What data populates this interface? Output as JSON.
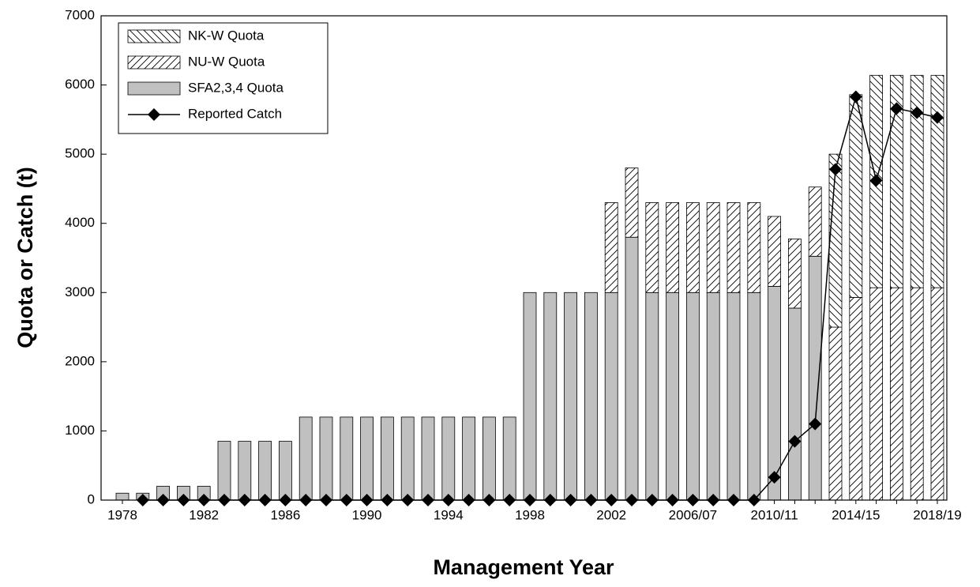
{
  "chart_data": {
    "type": "bar",
    "x_label": "Management Year",
    "y_label": "Quota or Catch (t)",
    "categories": [
      "1978",
      null,
      null,
      null,
      "1982",
      null,
      null,
      null,
      "1986",
      null,
      null,
      null,
      "1990",
      null,
      null,
      null,
      "1994",
      null,
      null,
      null,
      "1998",
      null,
      null,
      null,
      "2002",
      null,
      null,
      null,
      "2006/07",
      null,
      null,
      null,
      "2010/11",
      null,
      null,
      null,
      "2014/15",
      null,
      null,
      null,
      "2018/19"
    ],
    "series": [
      {
        "name": "NK-W Quota",
        "type": "bar",
        "pattern": "backslash",
        "color": "#000000",
        "values": [
          0,
          0,
          0,
          0,
          0,
          0,
          0,
          0,
          0,
          0,
          0,
          0,
          0,
          0,
          0,
          0,
          0,
          0,
          0,
          0,
          0,
          0,
          0,
          0,
          0,
          0,
          0,
          0,
          0,
          0,
          0,
          0,
          0,
          0,
          0,
          2500,
          2930,
          3070,
          3070,
          3070,
          3070
        ]
      },
      {
        "name": "NU-W Quota",
        "type": "bar",
        "pattern": "slash",
        "color": "#000000",
        "values": [
          0,
          0,
          0,
          0,
          0,
          0,
          0,
          0,
          0,
          0,
          0,
          0,
          0,
          0,
          0,
          0,
          0,
          0,
          0,
          0,
          0,
          0,
          0,
          0,
          1300,
          1000,
          1300,
          1300,
          1300,
          1300,
          1300,
          1300,
          1010,
          1000,
          1000,
          2500,
          2930,
          3070,
          3070,
          3070,
          3070
        ]
      },
      {
        "name": "SFA2,3,4 Quota",
        "type": "bar",
        "pattern": "solid",
        "color": "#c0c0c0",
        "values": [
          100,
          100,
          200,
          200,
          200,
          850,
          850,
          850,
          850,
          1200,
          1200,
          1200,
          1200,
          1200,
          1200,
          1200,
          1200,
          1200,
          1200,
          1200,
          3000,
          3000,
          3000,
          3000,
          3000,
          3800,
          3000,
          3000,
          3000,
          3000,
          3000,
          3000,
          3090,
          2775,
          3525,
          0,
          0,
          0,
          0,
          0,
          0
        ]
      },
      {
        "name": "Reported Catch",
        "type": "line",
        "color": "#000000",
        "values": [
          null,
          0,
          0,
          0,
          0,
          0,
          0,
          0,
          0,
          0,
          0,
          0,
          0,
          0,
          0,
          0,
          0,
          0,
          0,
          0,
          0,
          0,
          0,
          0,
          0,
          0,
          0,
          0,
          0,
          0,
          0,
          0,
          330,
          850,
          1100,
          4780,
          5830,
          4620,
          5660,
          5600,
          5530
        ]
      }
    ],
    "ylim": [
      0,
      7000
    ],
    "yticks": [
      0,
      1000,
      2000,
      3000,
      4000,
      5000,
      6000,
      7000
    ],
    "grid": false,
    "legend": "top-left"
  }
}
